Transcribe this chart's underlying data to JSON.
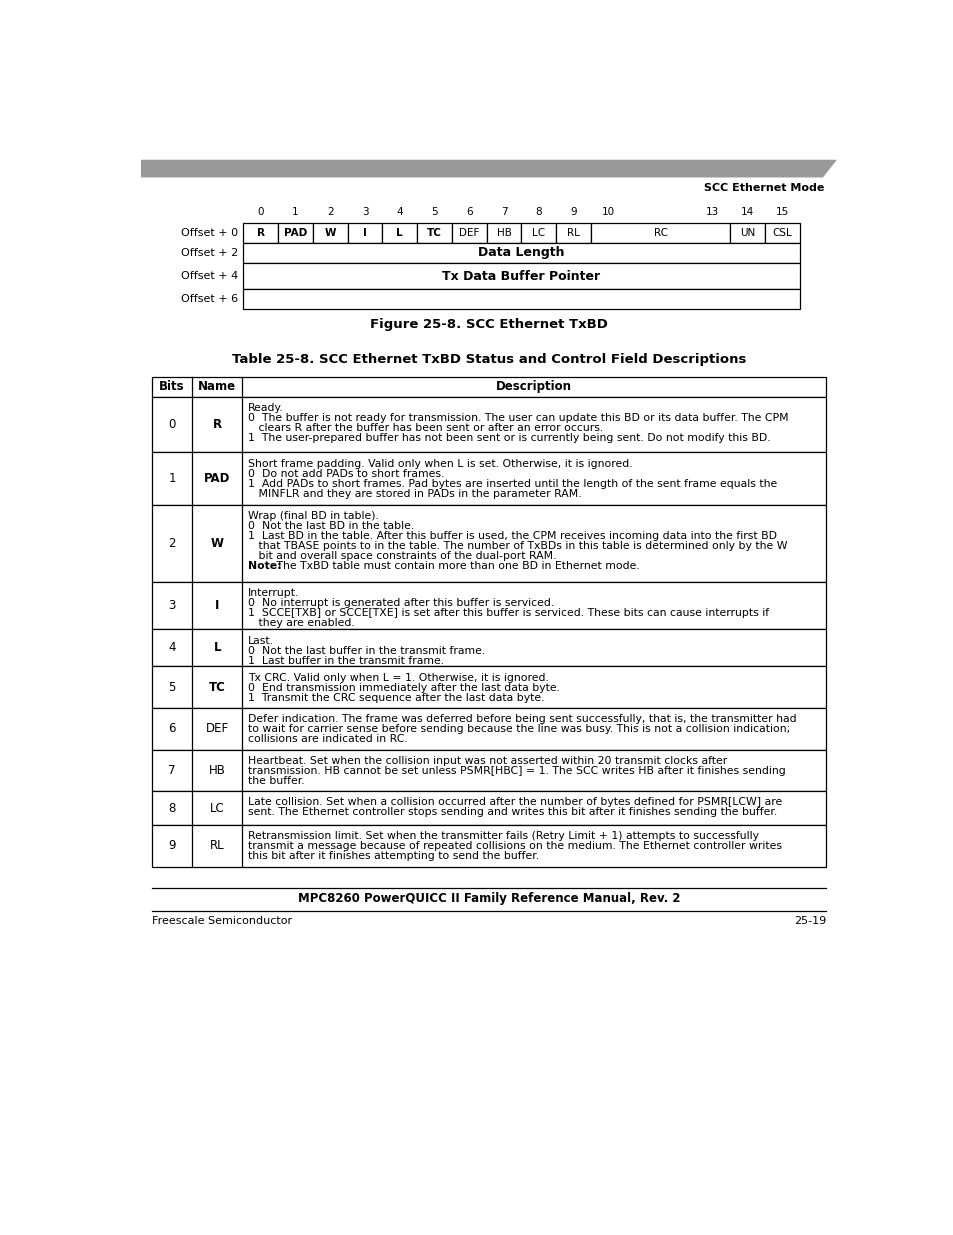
{
  "page_title_right": "SCC Ethernet Mode",
  "figure_caption": "Figure 25-8. SCC Ethernet TxBD",
  "table_title": "Table 25-8. SCC Ethernet TxBD Status and Control Field Descriptions",
  "background_color": "#ffffff",
  "footer_center": "MPC8260 PowerQUICC II Family Reference Manual, Rev. 2",
  "footer_left": "Freescale Semiconductor",
  "footer_right": "25-19",
  "bit_diagram": {
    "col_numbers": [
      "0",
      "1",
      "2",
      "3",
      "4",
      "5",
      "6",
      "7",
      "8",
      "9",
      "10",
      "",
      "",
      "13",
      "14",
      "15"
    ],
    "rows": [
      {
        "label": "Offset + 0",
        "cells": [
          {
            "text": "R",
            "bold": true,
            "span": 1
          },
          {
            "text": "PAD",
            "bold": true,
            "span": 1
          },
          {
            "text": "W",
            "bold": true,
            "span": 1
          },
          {
            "text": "I",
            "bold": true,
            "span": 1
          },
          {
            "text": "L",
            "bold": true,
            "span": 1
          },
          {
            "text": "TC",
            "bold": true,
            "span": 1
          },
          {
            "text": "DEF",
            "bold": false,
            "span": 1
          },
          {
            "text": "HB",
            "bold": false,
            "span": 1
          },
          {
            "text": "LC",
            "bold": false,
            "span": 1
          },
          {
            "text": "RL",
            "bold": false,
            "span": 1
          },
          {
            "text": "RC",
            "bold": false,
            "span": 4
          },
          {
            "text": "UN",
            "bold": false,
            "span": 1
          },
          {
            "text": "CSL",
            "bold": false,
            "span": 1
          }
        ]
      },
      {
        "label": "Offset + 2",
        "cells": [
          {
            "text": "Data Length",
            "bold": true,
            "span": 16
          }
        ]
      },
      {
        "label": "Offset + 4",
        "cells": [
          {
            "text": "Tx Data Buffer Pointer",
            "bold": true,
            "span": 16
          }
        ]
      },
      {
        "label": "Offset + 6",
        "cells": [
          {
            "text": "",
            "bold": false,
            "span": 16
          }
        ]
      }
    ]
  },
  "table_rows": [
    {
      "bits": "0",
      "name": "R",
      "name_bold": true,
      "description": "Ready.\n0  The buffer is not ready for transmission. The user can update this BD or its data buffer. The CPM\n   clears R after the buffer has been sent or after an error occurs.\n1  The user-prepared buffer has not been sent or is currently being sent. Do not modify this BD."
    },
    {
      "bits": "1",
      "name": "PAD",
      "name_bold": true,
      "description": "Short frame padding. Valid only when L is set. Otherwise, it is ignored.\n0  Do not add PADs to short frames.\n1  Add PADs to short frames. Pad bytes are inserted until the length of the sent frame equals the\n   MINFLR and they are stored in PADs in the parameter RAM."
    },
    {
      "bits": "2",
      "name": "W",
      "name_bold": true,
      "description": "Wrap (final BD in table).\n0  Not the last BD in the table.\n1  Last BD in the table. After this buffer is used, the CPM receives incoming data into the first BD\n   that TBASE points to in the table. The number of TxBDs in this table is determined only by the W\n   bit and overall space constraints of the dual-port RAM.\nNote: The TxBD table must contain more than one BD in Ethernet mode."
    },
    {
      "bits": "3",
      "name": "I",
      "name_bold": true,
      "description": "Interrupt.\n0  No interrupt is generated after this buffer is serviced.\n1  SCCE[TXB] or SCCE[TXE] is set after this buffer is serviced. These bits can cause interrupts if\n   they are enabled."
    },
    {
      "bits": "4",
      "name": "L",
      "name_bold": true,
      "description": "Last.\n0  Not the last buffer in the transmit frame.\n1  Last buffer in the transmit frame."
    },
    {
      "bits": "5",
      "name": "TC",
      "name_bold": true,
      "description": "Tx CRC. Valid only when L = 1. Otherwise, it is ignored.\n0  End transmission immediately after the last data byte.\n1  Transmit the CRC sequence after the last data byte."
    },
    {
      "bits": "6",
      "name": "DEF",
      "name_bold": false,
      "description": "Defer indication. The frame was deferred before being sent successfully, that is, the transmitter had\nto wait for carrier sense before sending because the line was busy. This is not a collision indication;\ncollisions are indicated in RC."
    },
    {
      "bits": "7",
      "name": "HB",
      "name_bold": false,
      "description": "Heartbeat. Set when the collision input was not asserted within 20 transmit clocks after\ntransmission. HB cannot be set unless PSMR[HBC] = 1. The SCC writes HB after it finishes sending\nthe buffer."
    },
    {
      "bits": "8",
      "name": "LC",
      "name_bold": false,
      "description": "Late collision. Set when a collision occurred after the number of bytes defined for PSMR[LCW] are\nsent. The Ethernet controller stops sending and writes this bit after it finishes sending the buffer."
    },
    {
      "bits": "9",
      "name": "RL",
      "name_bold": false,
      "description": "Retransmission limit. Set when the transmitter fails (Retry Limit + 1) attempts to successfully\ntransmit a message because of repeated collisions on the medium. The Ethernet controller writes\nthis bit after it finishes attempting to send the buffer."
    }
  ]
}
